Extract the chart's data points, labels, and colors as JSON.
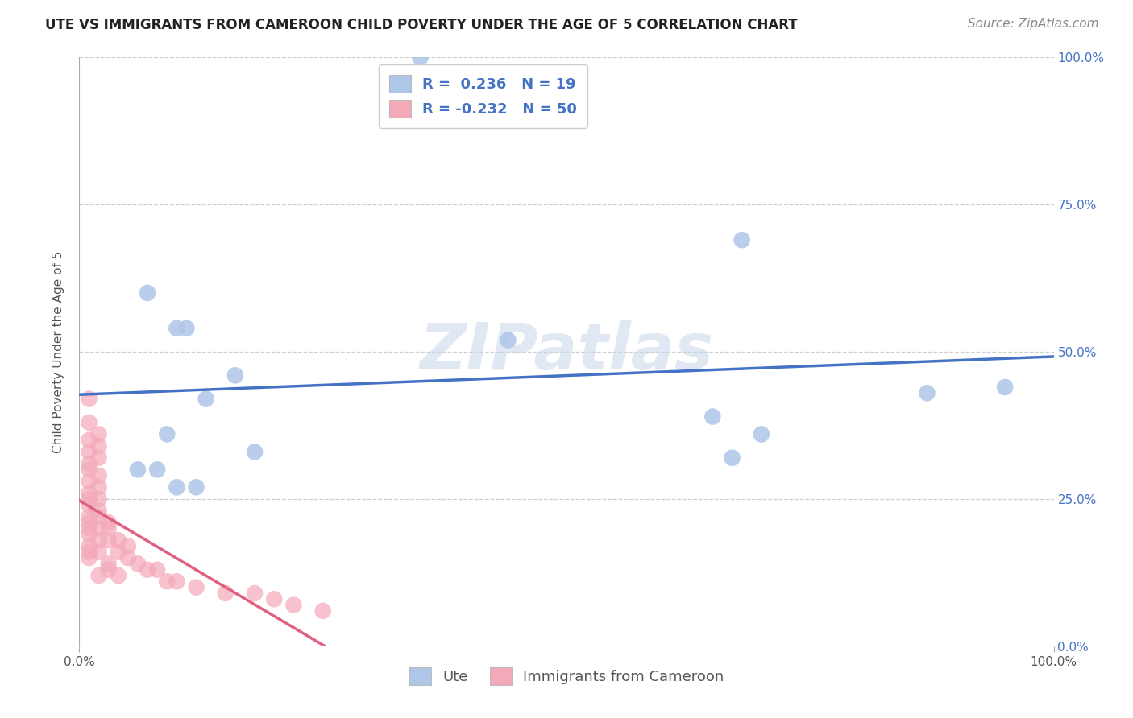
{
  "title": "UTE VS IMMIGRANTS FROM CAMEROON CHILD POVERTY UNDER THE AGE OF 5 CORRELATION CHART",
  "source": "Source: ZipAtlas.com",
  "ylabel": "Child Poverty Under the Age of 5",
  "watermark": "ZIPatlas",
  "xlim": [
    0.0,
    1.0
  ],
  "ylim": [
    0.0,
    1.0
  ],
  "xtick_labels": [
    "0.0%",
    "100.0%"
  ],
  "ytick_labels": [
    "0.0%",
    "25.0%",
    "50.0%",
    "75.0%",
    "100.0%"
  ],
  "ytick_values": [
    0.0,
    0.25,
    0.5,
    0.75,
    1.0
  ],
  "xtick_values": [
    0.0,
    1.0
  ],
  "legend_labels": [
    "Ute",
    "Immigrants from Cameroon"
  ],
  "ute_color": "#aec6e8",
  "cameroon_color": "#f4a9b8",
  "ute_line_color": "#4472c4",
  "cameroon_line_color": "#e06080",
  "background_color": "#ffffff",
  "grid_color": "#c8c8c8",
  "R_ute": 0.236,
  "N_ute": 19,
  "R_cameroon": -0.232,
  "N_cameroon": 50,
  "legend_text_color": "#4472c4",
  "ute_scatter": [
    [
      0.35,
      1.0
    ],
    [
      0.68,
      0.69
    ],
    [
      0.07,
      0.6
    ],
    [
      0.1,
      0.54
    ],
    [
      0.11,
      0.54
    ],
    [
      0.44,
      0.52
    ],
    [
      0.16,
      0.46
    ],
    [
      0.13,
      0.42
    ],
    [
      0.87,
      0.43
    ],
    [
      0.95,
      0.44
    ],
    [
      0.65,
      0.39
    ],
    [
      0.7,
      0.36
    ],
    [
      0.09,
      0.36
    ],
    [
      0.18,
      0.33
    ],
    [
      0.67,
      0.32
    ],
    [
      0.06,
      0.3
    ],
    [
      0.08,
      0.3
    ],
    [
      0.1,
      0.27
    ],
    [
      0.12,
      0.27
    ]
  ],
  "cameroon_scatter": [
    [
      0.01,
      0.42
    ],
    [
      0.01,
      0.38
    ],
    [
      0.02,
      0.36
    ],
    [
      0.01,
      0.35
    ],
    [
      0.02,
      0.34
    ],
    [
      0.01,
      0.33
    ],
    [
      0.02,
      0.32
    ],
    [
      0.01,
      0.31
    ],
    [
      0.01,
      0.3
    ],
    [
      0.02,
      0.29
    ],
    [
      0.01,
      0.28
    ],
    [
      0.02,
      0.27
    ],
    [
      0.01,
      0.26
    ],
    [
      0.01,
      0.25
    ],
    [
      0.02,
      0.25
    ],
    [
      0.01,
      0.24
    ],
    [
      0.02,
      0.23
    ],
    [
      0.01,
      0.22
    ],
    [
      0.02,
      0.22
    ],
    [
      0.01,
      0.21
    ],
    [
      0.03,
      0.21
    ],
    [
      0.01,
      0.2
    ],
    [
      0.02,
      0.2
    ],
    [
      0.03,
      0.2
    ],
    [
      0.01,
      0.19
    ],
    [
      0.02,
      0.18
    ],
    [
      0.03,
      0.18
    ],
    [
      0.04,
      0.18
    ],
    [
      0.05,
      0.17
    ],
    [
      0.01,
      0.16
    ],
    [
      0.02,
      0.16
    ],
    [
      0.04,
      0.16
    ],
    [
      0.05,
      0.15
    ],
    [
      0.01,
      0.15
    ],
    [
      0.03,
      0.14
    ],
    [
      0.06,
      0.14
    ],
    [
      0.07,
      0.13
    ],
    [
      0.08,
      0.13
    ],
    [
      0.02,
      0.12
    ],
    [
      0.04,
      0.12
    ],
    [
      0.09,
      0.11
    ],
    [
      0.1,
      0.11
    ],
    [
      0.12,
      0.1
    ],
    [
      0.15,
      0.09
    ],
    [
      0.18,
      0.09
    ],
    [
      0.2,
      0.08
    ],
    [
      0.22,
      0.07
    ],
    [
      0.25,
      0.06
    ],
    [
      0.01,
      0.17
    ],
    [
      0.03,
      0.13
    ]
  ],
  "title_fontsize": 12,
  "axis_label_fontsize": 11,
  "tick_fontsize": 11,
  "legend_fontsize": 13,
  "source_fontsize": 11
}
